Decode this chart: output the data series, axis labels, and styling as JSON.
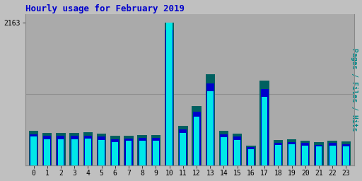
{
  "title": "Hourly usage for February 2019",
  "ylabel": "Pages / Files / Hits",
  "hours": [
    0,
    1,
    2,
    3,
    4,
    5,
    6,
    7,
    8,
    9,
    10,
    11,
    12,
    13,
    14,
    15,
    16,
    17,
    18,
    19,
    20,
    21,
    22,
    23
  ],
  "pages": [
    520,
    490,
    490,
    490,
    500,
    480,
    440,
    450,
    460,
    460,
    2163,
    600,
    900,
    1380,
    520,
    480,
    300,
    1280,
    380,
    390,
    370,
    345,
    370,
    355
  ],
  "files": [
    470,
    440,
    440,
    440,
    450,
    430,
    390,
    405,
    415,
    415,
    2050,
    540,
    810,
    1240,
    470,
    430,
    270,
    1150,
    340,
    350,
    335,
    310,
    335,
    320
  ],
  "hits": [
    430,
    395,
    395,
    395,
    405,
    385,
    350,
    365,
    375,
    375,
    2163,
    490,
    730,
    1120,
    425,
    385,
    240,
    1040,
    305,
    315,
    300,
    280,
    300,
    288
  ],
  "pages_color": "#006060",
  "files_color": "#0000cc",
  "hits_color": "#00e8e8",
  "bg_color": "#c0c0c0",
  "plot_bg_color": "#aaaaaa",
  "title_color": "#0000cc",
  "ylabel_color": "#008888",
  "tick_color": "#000000",
  "ymax": 2163,
  "bar_width": 0.7
}
